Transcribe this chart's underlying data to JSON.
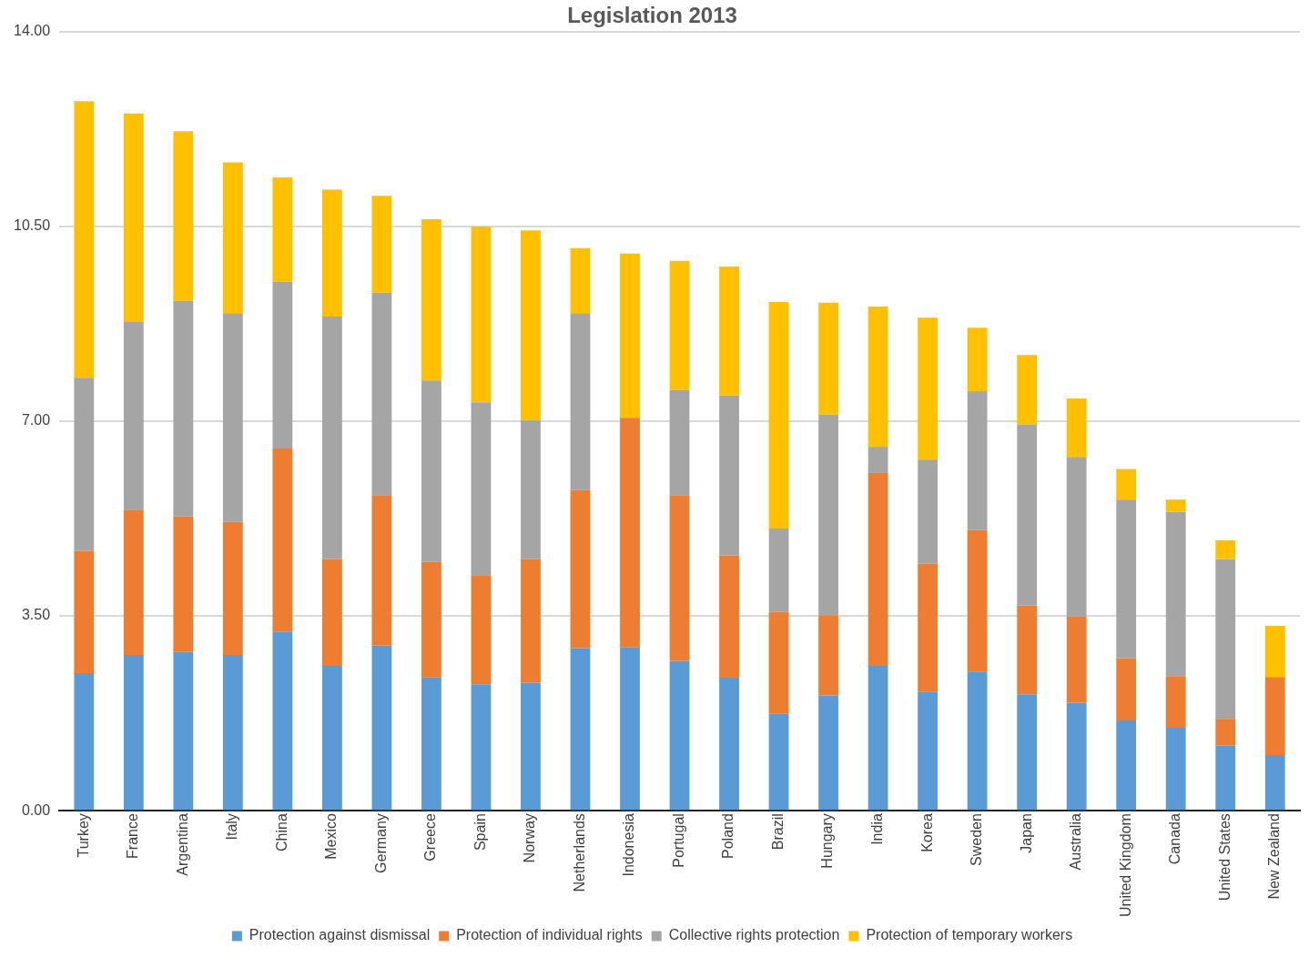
{
  "chart_data": {
    "type": "bar",
    "title": "Legislation 2013",
    "stacked": true,
    "categories": [
      "Turkey",
      "France",
      "Argentina",
      "Italy",
      "China",
      "Mexico",
      "Germany",
      "Greece",
      "Spain",
      "Norway",
      "Netherlands",
      "Indonesia",
      "Portugal",
      "Poland",
      "Brazil",
      "Hungary",
      "India",
      "Korea",
      "Sweden",
      "Japan",
      "Australia",
      "United Kingdom",
      "Canada",
      "United States",
      "New Zealand"
    ],
    "series": [
      {
        "name": "Protection against dismissal",
        "color": "#5b9bd5",
        "values": [
          2.47,
          2.8,
          2.85,
          2.8,
          3.22,
          2.6,
          2.97,
          2.4,
          2.27,
          2.3,
          2.92,
          2.94,
          2.69,
          2.39,
          1.74,
          2.07,
          2.6,
          2.14,
          2.5,
          2.09,
          1.94,
          1.62,
          1.49,
          1.17,
          1.0
        ]
      },
      {
        "name": "Protection of individual rights",
        "color": "#ed7d31",
        "values": [
          2.2,
          2.61,
          2.44,
          2.39,
          3.29,
          1.92,
          2.7,
          2.07,
          1.95,
          2.22,
          2.84,
          4.12,
          2.98,
          2.2,
          1.83,
          1.43,
          3.47,
          2.3,
          2.54,
          1.6,
          1.55,
          1.12,
          0.93,
          0.48,
          1.4
        ]
      },
      {
        "name": "Collective rights protection",
        "color": "#a5a5a5",
        "values": [
          3.11,
          3.37,
          3.87,
          3.75,
          3.0,
          4.36,
          3.64,
          3.26,
          3.12,
          2.5,
          3.18,
          0,
          1.89,
          2.87,
          1.5,
          3.62,
          0.47,
          1.87,
          2.5,
          3.25,
          2.87,
          2.85,
          2.95,
          2.87,
          0
        ]
      },
      {
        "name": "Protection of temporary workers",
        "color": "#ffc000",
        "values": [
          4.97,
          3.75,
          3.05,
          2.71,
          1.87,
          2.28,
          1.74,
          2.9,
          3.16,
          3.41,
          1.17,
          2.95,
          2.32,
          2.32,
          4.07,
          2.01,
          2.52,
          2.55,
          1.14,
          1.25,
          1.05,
          0.55,
          0.22,
          0.34,
          0.92
        ]
      }
    ],
    "ylim": [
      0,
      14
    ],
    "yticks": [
      {
        "value": 0,
        "label": "0.00"
      },
      {
        "value": 3.5,
        "label": "3.50"
      },
      {
        "value": 7,
        "label": "7.00"
      },
      {
        "value": 10.5,
        "label": "10.50"
      },
      {
        "value": 14,
        "label": "14.00"
      }
    ],
    "grid": "y",
    "legend": "bottom"
  }
}
